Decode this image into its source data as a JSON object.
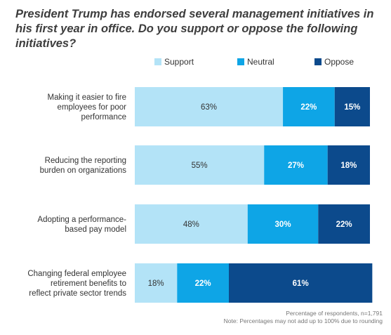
{
  "chart_data": {
    "type": "bar",
    "orientation": "horizontal",
    "stacked": true,
    "title": "President Trump has endorsed several management initiatives in his first year in office. Do you support or oppose the following initiatives?",
    "categories": [
      [
        "Making it easier to fire",
        "employees for poor",
        "performance"
      ],
      [
        "Reducing the reporting",
        "burden on organizations"
      ],
      [
        "Adopting a performance-",
        "based pay model"
      ],
      [
        "Changing federal employee",
        "retirement benefits to",
        "reflect private sector trends"
      ]
    ],
    "series": [
      {
        "name": "Support",
        "values": [
          63,
          55,
          48,
          18
        ],
        "color": "#b3e3f7",
        "label_color": "#333333"
      },
      {
        "name": "Neutral",
        "values": [
          22,
          27,
          30,
          22
        ],
        "color": "#0ea5e6",
        "label_color": "#ffffff"
      },
      {
        "name": "Oppose",
        "values": [
          15,
          18,
          22,
          61
        ],
        "color": "#0c4a8c",
        "label_color": "#ffffff"
      }
    ],
    "value_suffix": "%",
    "xlim": [
      0,
      100
    ],
    "legend_position": "top-right",
    "grid": false
  },
  "footnotes": [
    "Percentage of respondents, n=1,791",
    "Note: Percentages may not add up to 100% due to rounding"
  ]
}
